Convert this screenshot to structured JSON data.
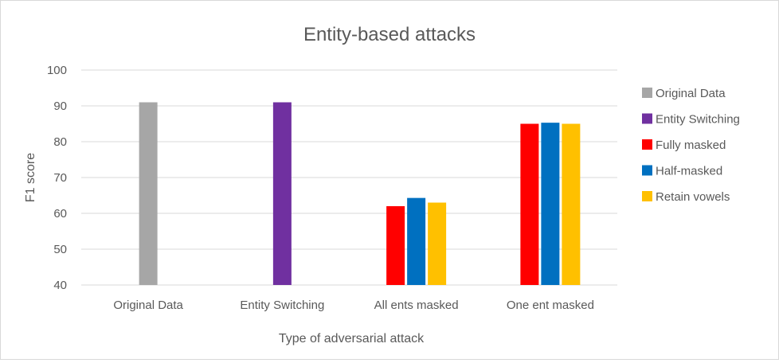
{
  "chart_data": {
    "type": "bar",
    "title": "Entity-based attacks",
    "xlabel": "Type of adversarial attack",
    "ylabel": "F1 score",
    "ylim": [
      40,
      100
    ],
    "yticks": [
      "40",
      "50",
      "60",
      "70",
      "80",
      "90",
      "100"
    ],
    "grid": true,
    "legend_position": "right",
    "categories": [
      "Original Data",
      "Entity Switching",
      "All ents masked",
      "One ent masked"
    ],
    "series": [
      {
        "name": "Original Data",
        "color": "#a6a6a6",
        "values": [
          91,
          null,
          null,
          null
        ]
      },
      {
        "name": "Entity Switching",
        "color": "#7030a0",
        "values": [
          null,
          91,
          null,
          null
        ]
      },
      {
        "name": "Fully masked",
        "color": "#ff0000",
        "values": [
          null,
          null,
          62,
          85
        ]
      },
      {
        "name": "Half-masked",
        "color": "#0070c0",
        "values": [
          null,
          null,
          64.3,
          85.3
        ]
      },
      {
        "name": "Retain vowels",
        "color": "#ffc000",
        "values": [
          null,
          null,
          63,
          85
        ]
      }
    ]
  }
}
